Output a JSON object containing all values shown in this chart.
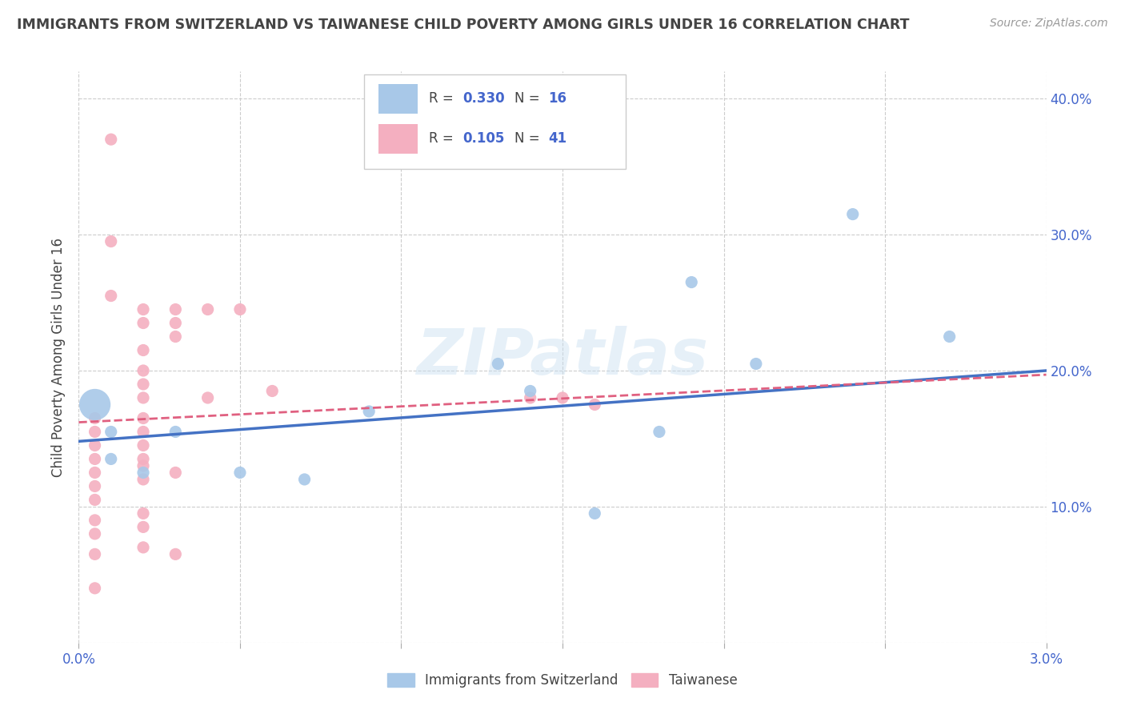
{
  "title": "IMMIGRANTS FROM SWITZERLAND VS TAIWANESE CHILD POVERTY AMONG GIRLS UNDER 16 CORRELATION CHART",
  "source": "Source: ZipAtlas.com",
  "ylabel": "Child Poverty Among Girls Under 16",
  "legend_label_blue": "Immigrants from Switzerland",
  "legend_label_pink": "Taiwanese",
  "legend_r_blue": "0.330",
  "legend_n_blue": "16",
  "legend_r_pink": "0.105",
  "legend_n_pink": "41",
  "watermark": "ZIPatlas",
  "blue_color": "#a8c8e8",
  "pink_color": "#f4afc0",
  "blue_line_color": "#4472c4",
  "pink_line_color": "#e06080",
  "blue_scatter": [
    [
      0.0005,
      0.175
    ],
    [
      0.001,
      0.155
    ],
    [
      0.001,
      0.135
    ],
    [
      0.002,
      0.125
    ],
    [
      0.003,
      0.155
    ],
    [
      0.005,
      0.125
    ],
    [
      0.007,
      0.12
    ],
    [
      0.009,
      0.17
    ],
    [
      0.013,
      0.205
    ],
    [
      0.014,
      0.185
    ],
    [
      0.016,
      0.095
    ],
    [
      0.018,
      0.155
    ],
    [
      0.019,
      0.265
    ],
    [
      0.021,
      0.205
    ],
    [
      0.024,
      0.315
    ],
    [
      0.027,
      0.225
    ]
  ],
  "blue_scatter_large": true,
  "blue_large_index": 0,
  "pink_scatter": [
    [
      0.0005,
      0.165
    ],
    [
      0.001,
      0.37
    ],
    [
      0.001,
      0.295
    ],
    [
      0.001,
      0.255
    ],
    [
      0.002,
      0.245
    ],
    [
      0.002,
      0.235
    ],
    [
      0.002,
      0.215
    ],
    [
      0.002,
      0.2
    ],
    [
      0.002,
      0.19
    ],
    [
      0.002,
      0.18
    ],
    [
      0.002,
      0.165
    ],
    [
      0.002,
      0.155
    ],
    [
      0.002,
      0.145
    ],
    [
      0.002,
      0.135
    ],
    [
      0.002,
      0.13
    ],
    [
      0.002,
      0.12
    ],
    [
      0.002,
      0.095
    ],
    [
      0.002,
      0.085
    ],
    [
      0.002,
      0.07
    ],
    [
      0.003,
      0.245
    ],
    [
      0.003,
      0.235
    ],
    [
      0.003,
      0.225
    ],
    [
      0.003,
      0.125
    ],
    [
      0.003,
      0.065
    ],
    [
      0.004,
      0.245
    ],
    [
      0.004,
      0.18
    ],
    [
      0.005,
      0.245
    ],
    [
      0.006,
      0.185
    ],
    [
      0.0005,
      0.155
    ],
    [
      0.0005,
      0.145
    ],
    [
      0.0005,
      0.135
    ],
    [
      0.0005,
      0.125
    ],
    [
      0.0005,
      0.115
    ],
    [
      0.0005,
      0.105
    ],
    [
      0.0005,
      0.09
    ],
    [
      0.0005,
      0.08
    ],
    [
      0.0005,
      0.065
    ],
    [
      0.0005,
      0.04
    ],
    [
      0.015,
      0.18
    ],
    [
      0.016,
      0.175
    ],
    [
      0.014,
      0.18
    ]
  ],
  "blue_trendline": [
    0.1375,
    4.0
  ],
  "pink_trendline": [
    0.155,
    2.0
  ],
  "xlim": [
    0.0,
    0.03
  ],
  "ylim": [
    0.0,
    0.42
  ],
  "xtick_positions": [
    0.0,
    0.005,
    0.01,
    0.015,
    0.02,
    0.025,
    0.03
  ],
  "ytick_positions": [
    0.0,
    0.1,
    0.2,
    0.3,
    0.4
  ],
  "grid_color": "#cccccc",
  "background_color": "#ffffff",
  "text_color_blue": "#4466cc",
  "text_color_dark": "#444444"
}
